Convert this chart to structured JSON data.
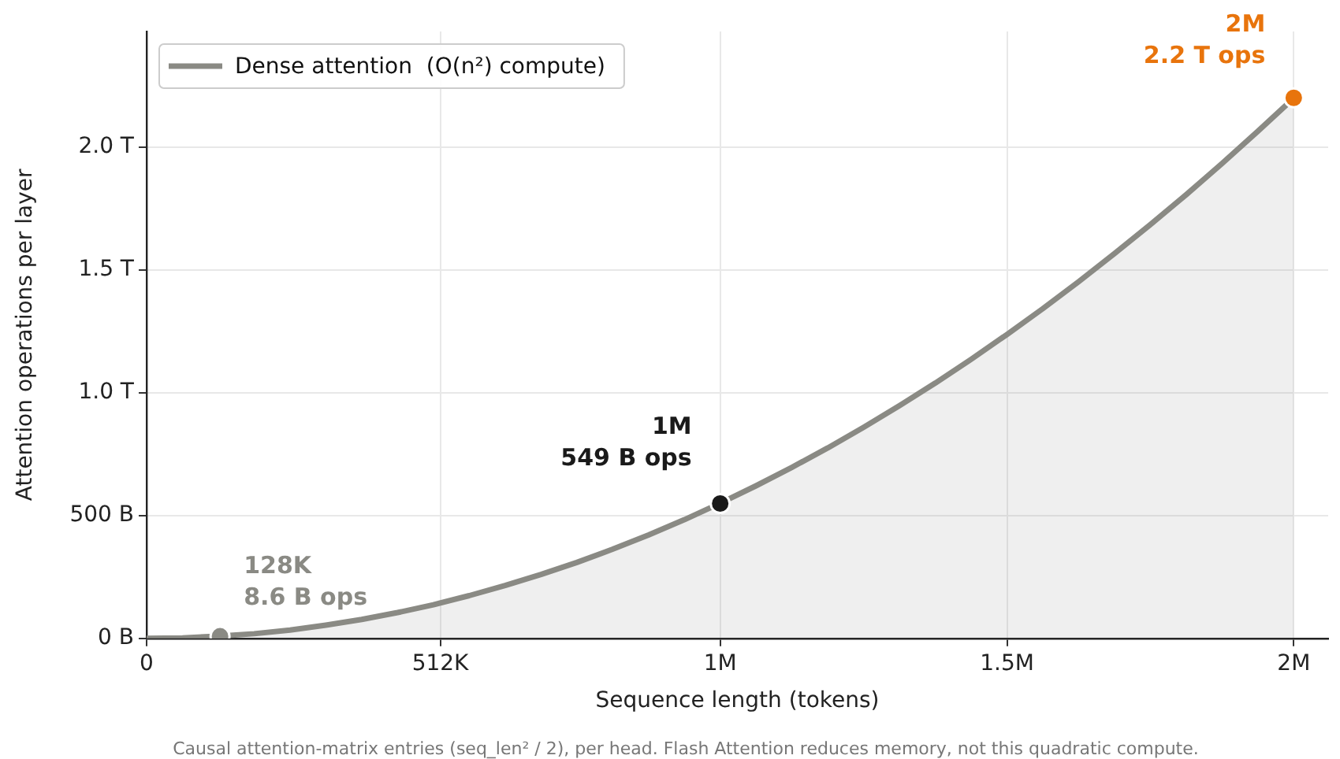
{
  "chart_data": {
    "type": "area",
    "xlabel": "Sequence length (tokens)",
    "ylabel": "Attention operations per layer",
    "xlim": [
      0,
      2060000
    ],
    "ylim": [
      0,
      2470000000000
    ],
    "xticks": [
      {
        "value": 0,
        "label": "0"
      },
      {
        "value": 512000,
        "label": "512K"
      },
      {
        "value": 1000000,
        "label": "1M"
      },
      {
        "value": 1500000,
        "label": "1.5M"
      },
      {
        "value": 2000000,
        "label": "2M"
      }
    ],
    "yticks": [
      {
        "value": 0,
        "label": "0 B"
      },
      {
        "value": 500000000000,
        "label": "500 B"
      },
      {
        "value": 1000000000000,
        "label": "1.0 T"
      },
      {
        "value": 1500000000000,
        "label": "1.5 T"
      },
      {
        "value": 2000000000000,
        "label": "2.0 T"
      }
    ],
    "grid": true,
    "legend": "top left",
    "marker": "none",
    "line_style": "solid",
    "series": [
      {
        "name": "Dense attention  (O(n²) compute)",
        "type": "area",
        "color": "#8a8a84",
        "x": [
          0,
          62500,
          125000,
          187500,
          250000,
          312500,
          375000,
          437500,
          500000,
          562500,
          625000,
          687500,
          750000,
          812500,
          875000,
          937500,
          1000000,
          1062500,
          1125000,
          1187500,
          1250000,
          1312500,
          1375000,
          1437500,
          1500000,
          1562500,
          1625000,
          1687500,
          1750000,
          1812500,
          1875000,
          1937500,
          2000000
        ],
        "values": [
          0,
          2000000000,
          9000000000,
          19000000000,
          34000000000,
          54000000000,
          77000000000,
          105000000000,
          137000000000,
          174000000000,
          215000000000,
          260000000000,
          309000000000,
          363000000000,
          421000000000,
          483000000000,
          550000000000,
          621000000000,
          696000000000,
          775000000000,
          859000000000,
          947000000000,
          1039000000000,
          1136000000000,
          1237000000000,
          1342000000000,
          1452000000000,
          1566000000000,
          1684000000000,
          1806000000000,
          1933000000000,
          2064000000000,
          2199000000000
        ]
      },
      {
        "type": "scatter",
        "marker": "circle",
        "x": [
          128000,
          1000000,
          2000000
        ],
        "values": [
          8600000000,
          549000000000,
          2200000000000
        ],
        "colors": [
          "#8a8a84",
          "#1a1a1a",
          "#e8740c"
        ]
      }
    ],
    "annotations": [
      {
        "text": "128K\n8.6 B ops",
        "x": 128000,
        "y": 8600000000
      },
      {
        "text": "1M\n549 B ops",
        "x": 1000000,
        "y": 549000000000
      },
      {
        "text": "2M\n2.2 T ops",
        "x": 2000000,
        "y": 2200000000000
      },
      "Causal attention-matrix entries (seq_len² / 2), per head. Flash Attention reduces memory, not this quadratic compute."
    ]
  }
}
